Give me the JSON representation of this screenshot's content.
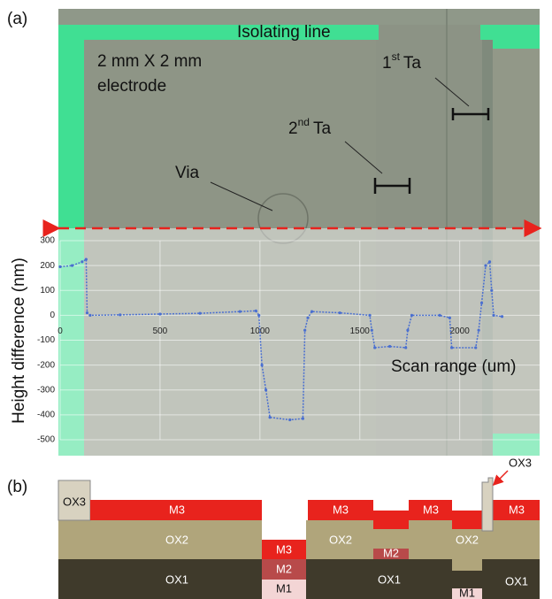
{
  "chart_data": {
    "type": "line",
    "y_label": "Height difference (nm)",
    "x_label": "Scan range (um)",
    "xlim": [
      0,
      2400
    ],
    "xticks": [
      0,
      500,
      1000,
      1500,
      2000
    ],
    "ylim": [
      -500,
      300
    ],
    "yticks": [
      -500,
      -400,
      -300,
      -200,
      -100,
      0,
      100,
      200,
      300
    ],
    "grid": true,
    "series": [
      {
        "color": "#4a6fd0",
        "x": [
          0,
          60,
          110,
          130,
          135,
          150,
          300,
          500,
          700,
          900,
          980,
          995,
          1010,
          1030,
          1050,
          1150,
          1215,
          1225,
          1240,
          1260,
          1400,
          1550,
          1560,
          1575,
          1650,
          1730,
          1740,
          1760,
          1900,
          1950,
          1960,
          2080,
          2095,
          2110,
          2130,
          2150,
          2160,
          2170,
          2212
        ],
        "values": [
          195,
          200,
          215,
          225,
          10,
          0,
          2,
          5,
          8,
          15,
          18,
          0,
          -200,
          -300,
          -410,
          -420,
          -415,
          -60,
          -10,
          15,
          10,
          0,
          -60,
          -130,
          -125,
          -130,
          -60,
          0,
          0,
          -10,
          -130,
          -130,
          -60,
          50,
          200,
          215,
          100,
          0,
          -5
        ]
      }
    ]
  },
  "image_labels": {
    "panel_a": "(a)",
    "isolating_line": "Isolating line",
    "electrode_1": "2 mm X 2 mm",
    "electrode_2": "electrode",
    "ta1_num": "1",
    "ta1_sup": "st",
    "ta1_rest": "Ta",
    "ta2_num": "2",
    "ta2_sup": "nd",
    "ta2_rest": "Ta",
    "via": "Via"
  },
  "diagram": {
    "panel_b": "(b)",
    "labels": [
      "OX3",
      "M3",
      "OX2",
      "OX1",
      "M3",
      "M2",
      "M1",
      "M3",
      "OX2",
      "M2",
      "OX1",
      "M3",
      "OX2",
      "M1",
      "M3",
      "OX1",
      "OX3"
    ]
  }
}
